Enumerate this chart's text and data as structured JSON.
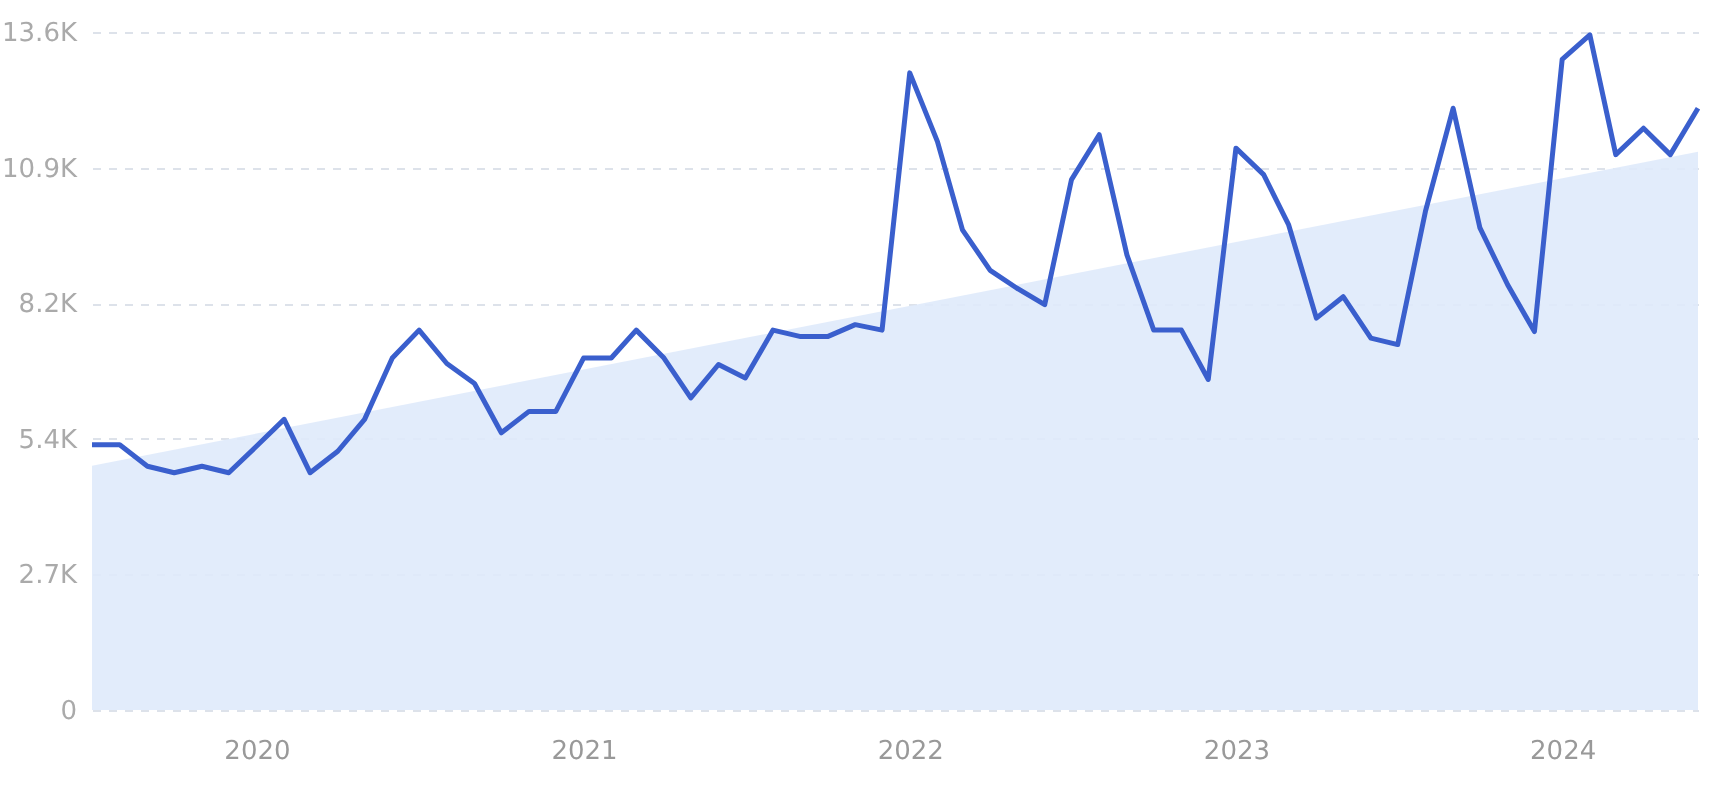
{
  "chart_data": {
    "type": "line",
    "x": [
      "2019-07",
      "2019-08",
      "2019-09",
      "2019-10",
      "2019-11",
      "2019-12",
      "2020-01",
      "2020-02",
      "2020-03",
      "2020-04",
      "2020-05",
      "2020-06",
      "2020-07",
      "2020-08",
      "2020-09",
      "2020-10",
      "2020-11",
      "2020-12",
      "2021-01",
      "2021-02",
      "2021-03",
      "2021-04",
      "2021-05",
      "2021-06",
      "2021-07",
      "2021-08",
      "2021-09",
      "2021-10",
      "2021-11",
      "2021-12",
      "2022-01",
      "2022-02",
      "2022-03",
      "2022-04",
      "2022-05",
      "2022-06",
      "2022-07",
      "2022-08",
      "2022-09",
      "2022-10",
      "2022-11",
      "2022-12",
      "2023-01",
      "2023-02",
      "2023-03",
      "2023-04",
      "2023-05",
      "2023-06",
      "2023-07",
      "2023-08",
      "2023-09",
      "2023-10",
      "2023-11",
      "2023-12",
      "2024-01",
      "2024-02",
      "2024-03",
      "2024-04",
      "2024-05",
      "2024-06"
    ],
    "series": [
      {
        "type": "area",
        "color": "#dfeafb",
        "x": [
          "2019-07",
          "2024-06"
        ],
        "values": [
          4900,
          11200
        ]
      },
      {
        "color": "#3a5fcd",
        "values": [
          5320,
          5320,
          4890,
          4760,
          4890,
          4760,
          5290,
          5830,
          4760,
          5190,
          5830,
          7060,
          7620,
          6950,
          6550,
          5560,
          5990,
          5990,
          7060,
          7060,
          7620,
          7060,
          6260,
          6930,
          6660,
          7620,
          7490,
          7490,
          7730,
          7620,
          12780,
          11400,
          9630,
          8820,
          8460,
          8130,
          10640,
          11540,
          9130,
          7620,
          7620,
          6630,
          11270,
          10740,
          9730,
          7860,
          8290,
          7460,
          7330,
          10000,
          12070,
          9670,
          8530,
          7590,
          13050,
          13540,
          11140,
          11670,
          11140,
          12070
        ]
      }
    ],
    "xlim": [
      "2019-07",
      "2024-06"
    ],
    "xticks": [
      {
        "value": "2020",
        "label": "2020"
      },
      {
        "value": "2021",
        "label": "2021"
      },
      {
        "value": "2022",
        "label": "2022"
      },
      {
        "value": "2023",
        "label": "2023"
      },
      {
        "value": "2024",
        "label": "2024"
      }
    ],
    "ylim": [
      0,
      13600
    ],
    "yticks": [
      {
        "value": 0,
        "label": "0"
      },
      {
        "value": 2720,
        "label": "2.7K"
      },
      {
        "value": 5440,
        "label": "5.4K"
      },
      {
        "value": 8160,
        "label": "8.2K"
      },
      {
        "value": 10880,
        "label": "10.9K"
      },
      {
        "value": 13600,
        "label": "13.6K"
      }
    ],
    "grid": "y",
    "marker": "none",
    "line_style": "solid"
  }
}
